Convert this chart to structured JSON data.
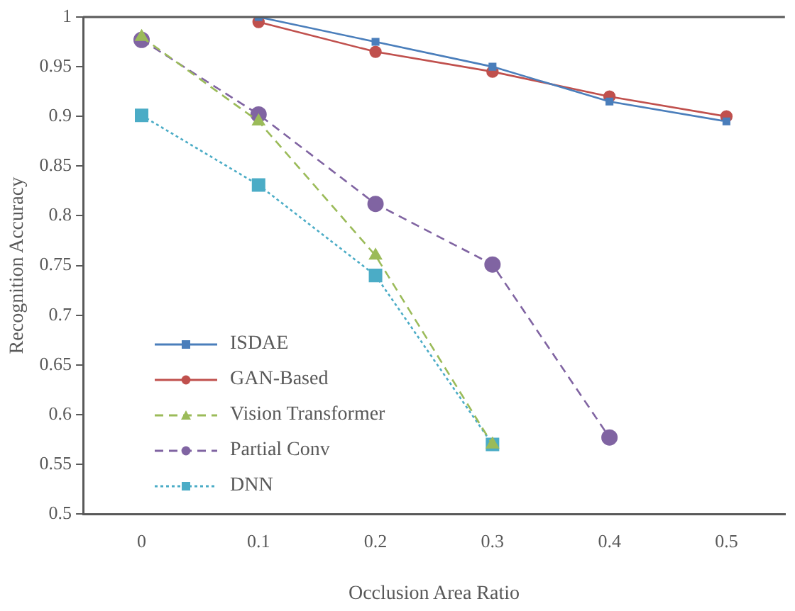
{
  "chart_data": {
    "type": "line",
    "xlabel": "Occlusion Area Ratio",
    "ylabel": "Recognition Accuracy",
    "categories": [
      "0",
      "0.1",
      "0.2",
      "0.3",
      "0.4",
      "0.5"
    ],
    "ylim": [
      0.5,
      1
    ],
    "yticks": [
      0.5,
      0.55,
      0.6,
      0.65,
      0.7,
      0.75,
      0.8,
      0.85,
      0.9,
      0.95,
      1
    ],
    "grid": false,
    "legend": "bottom left",
    "series": [
      {
        "name": "ISDAE",
        "color": "#4a7ebb",
        "marker": "square",
        "line_style": "solid",
        "values": [
          null,
          1.0,
          0.975,
          0.95,
          0.915,
          0.895
        ]
      },
      {
        "name": "GAN-Based",
        "color": "#c0504d",
        "marker": "circle",
        "line_style": "solid",
        "values": [
          null,
          0.995,
          0.965,
          0.945,
          0.92,
          0.9
        ]
      },
      {
        "name": "Vision Transformer",
        "color": "#9bbb59",
        "marker": "triangle",
        "line_style": "dashed",
        "values": [
          0.98,
          0.895,
          0.76,
          0.57,
          null,
          null
        ]
      },
      {
        "name": "Partial Conv",
        "color": "#8064a2",
        "marker": "circle",
        "line_style": "dashed",
        "values": [
          0.977,
          0.902,
          0.812,
          0.751,
          0.577,
          null
        ]
      },
      {
        "name": "DNN",
        "color": "#4bacc6",
        "marker": "square",
        "line_style": "dotted",
        "values": [
          0.901,
          0.831,
          0.74,
          0.57,
          null,
          null
        ]
      }
    ]
  }
}
